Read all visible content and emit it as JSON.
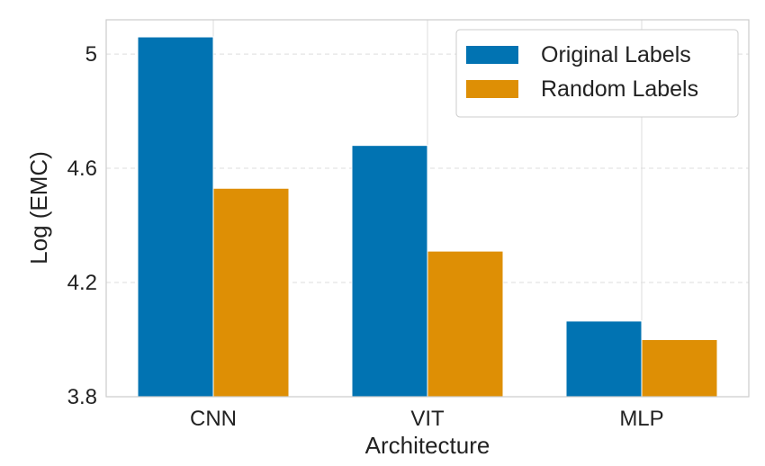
{
  "chart_data": {
    "type": "bar",
    "categories": [
      "CNN",
      "VIT",
      "MLP"
    ],
    "series": [
      {
        "name": "Original Labels",
        "values": [
          5.06,
          4.68,
          4.065
        ],
        "color": "#0173B2"
      },
      {
        "name": "Random Labels",
        "values": [
          4.53,
          4.31,
          4.0
        ],
        "color": "#DE8F05"
      }
    ],
    "xlabel": "Architecture",
    "ylabel": "Log (EMC)",
    "ylim": [
      3.8,
      5.12
    ],
    "yticks": [
      3.8,
      4.2,
      4.6,
      5
    ],
    "ytick_labels": [
      "3.8",
      "4.2",
      "4.6",
      "5"
    ],
    "grid": true,
    "legend_position": "top-right"
  }
}
